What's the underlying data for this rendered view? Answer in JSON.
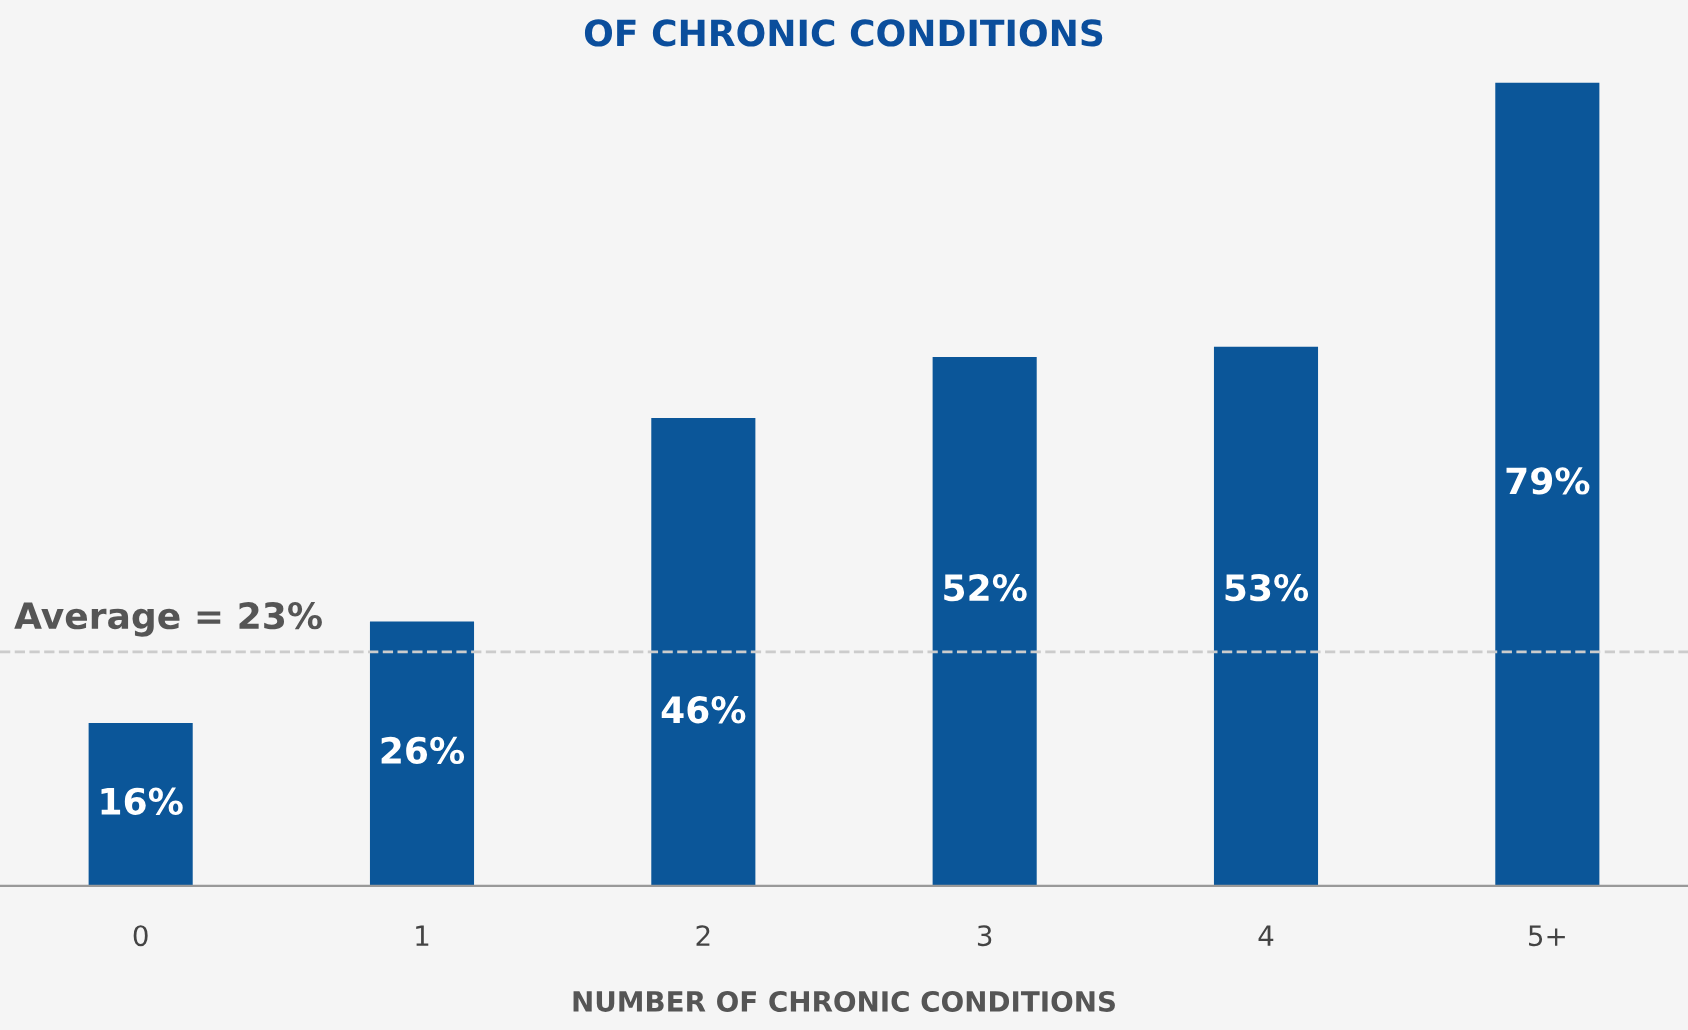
{
  "chart_data": {
    "type": "bar",
    "title": "OF CHRONIC CONDITIONS",
    "xlabel": "NUMBER OF CHRONIC CONDITIONS",
    "categories": [
      "0",
      "1",
      "2",
      "3",
      "4",
      "5+"
    ],
    "values": [
      16,
      26,
      46,
      52,
      53,
      79
    ],
    "color": "#0b5699",
    "data_labels": true,
    "value_labels": [
      "16%",
      "26%",
      "46%",
      "52%",
      "53%",
      "79%"
    ],
    "ref_lines": [
      {
        "axis": "y",
        "value": 23,
        "label": "Average = 23%",
        "color": "#cccccc",
        "line_style": "dashed"
      }
    ],
    "grid": false,
    "legend": false,
    "tick_labels": "x"
  }
}
